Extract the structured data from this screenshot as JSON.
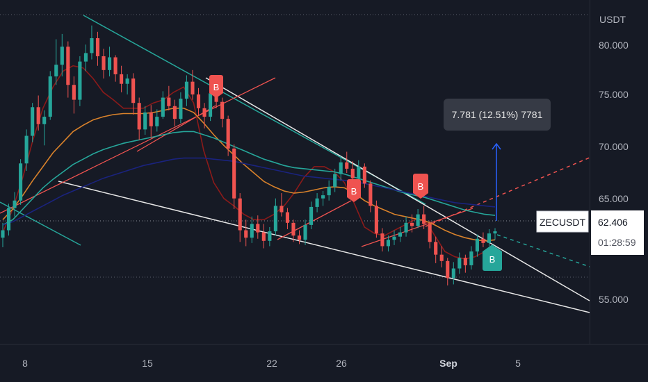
{
  "chart_data": {
    "type": "candlestick",
    "symbol": "ZECUSDT",
    "quote_currency": "USDT",
    "last_price": 62.406,
    "last_price_label": "62.406",
    "countdown": "01:28:59",
    "y_axis": {
      "ticks": [
        {
          "value": 80,
          "label": "80.000"
        },
        {
          "value": 75,
          "label": "75.000"
        },
        {
          "value": 70,
          "label": "70.000"
        },
        {
          "value": 65,
          "label": "65.000"
        },
        {
          "value": 55,
          "label": "55.000"
        }
      ],
      "range": [
        51.8,
        84.2
      ]
    },
    "x_axis": {
      "ticks": [
        "8",
        "15",
        "22",
        "26",
        "Sep",
        "5"
      ]
    },
    "measure_label": "7.781 (12.51%) 7781",
    "signals": [
      "B",
      "B",
      "B",
      "B"
    ],
    "moving_averages": [
      {
        "color": "#8b1a1a",
        "values": [
          62.3,
          64.5,
          67.5,
          71.0,
          74.0,
          76.0,
          77.5,
          78.0,
          77.8,
          76.8,
          75.5,
          74.8,
          74.0,
          74.0,
          74.0,
          74.5,
          74.8,
          75.5,
          76.0,
          74.5,
          70.0,
          67.0,
          65.5,
          64.8,
          64.0,
          63.5,
          63.5,
          64.0,
          64.8,
          66.0,
          67.5,
          68.5,
          68.5,
          68.0,
          67.0,
          65.0,
          62.8,
          62.2,
          62.0,
          62.5,
          63.0,
          63.5,
          63.5,
          62.0,
          60.5,
          60.0,
          59.8,
          60.0,
          60.5,
          61.0
        ]
      },
      {
        "color": "#d9822b",
        "values": [
          63.5,
          64.5,
          65.8,
          67.2,
          68.5,
          69.8,
          70.8,
          71.8,
          72.4,
          72.9,
          73.2,
          73.4,
          73.5,
          73.5,
          73.5,
          73.6,
          73.8,
          74.0,
          74.0,
          73.6,
          72.6,
          71.5,
          70.5,
          69.6,
          68.7,
          67.9,
          67.1,
          66.6,
          66.2,
          66.0,
          66.1,
          66.3,
          66.5,
          66.6,
          66.5,
          66.0,
          65.3,
          64.8,
          64.4,
          64.0,
          63.8,
          63.6,
          63.4,
          63.0,
          62.5,
          62.1,
          61.8,
          61.6,
          61.5,
          61.6
        ]
      },
      {
        "color": "#26a69a",
        "values": [
          63.0,
          63.5,
          64.5,
          65.5,
          66.5,
          67.3,
          68.0,
          68.7,
          69.2,
          69.7,
          70.1,
          70.4,
          70.7,
          70.9,
          71.1,
          71.3,
          71.5,
          71.7,
          71.8,
          71.8,
          71.5,
          71.2,
          70.8,
          70.4,
          70.0,
          69.6,
          69.2,
          68.9,
          68.6,
          68.4,
          68.3,
          68.2,
          68.1,
          68.0,
          67.8,
          67.5,
          67.2,
          66.9,
          66.6,
          66.3,
          66.0,
          65.8,
          65.6,
          65.3,
          65.0,
          64.7,
          64.4,
          64.2,
          64.0,
          63.9
        ]
      },
      {
        "color": "#1a237e",
        "values": [
          63.0,
          63.3,
          63.8,
          64.3,
          64.8,
          65.3,
          65.8,
          66.2,
          66.6,
          67.0,
          67.4,
          67.7,
          68.0,
          68.3,
          68.6,
          68.8,
          69.0,
          69.2,
          69.3,
          69.3,
          69.3,
          69.2,
          69.1,
          69.0,
          68.8,
          68.6,
          68.4,
          68.2,
          68.0,
          67.8,
          67.6,
          67.5,
          67.4,
          67.3,
          67.2,
          67.1,
          66.9,
          66.7,
          66.5,
          66.3,
          66.1,
          65.9,
          65.7,
          65.5,
          65.3,
          65.1,
          65.0,
          64.9,
          64.8,
          64.7
        ]
      }
    ],
    "candles": [
      {
        "o": 61.8,
        "h": 63.2,
        "l": 60.9,
        "c": 62.5
      },
      {
        "o": 62.5,
        "h": 65.0,
        "l": 62.0,
        "c": 64.6
      },
      {
        "o": 64.6,
        "h": 66.1,
        "l": 63.8,
        "c": 65.3
      },
      {
        "o": 65.3,
        "h": 69.2,
        "l": 64.9,
        "c": 68.8
      },
      {
        "o": 68.8,
        "h": 72.0,
        "l": 68.1,
        "c": 71.4
      },
      {
        "o": 71.4,
        "h": 74.5,
        "l": 70.8,
        "c": 74.1
      },
      {
        "o": 74.1,
        "h": 75.2,
        "l": 71.9,
        "c": 72.5
      },
      {
        "o": 72.5,
        "h": 73.8,
        "l": 70.5,
        "c": 73.2
      },
      {
        "o": 73.2,
        "h": 77.5,
        "l": 72.9,
        "c": 77.0
      },
      {
        "o": 77.0,
        "h": 80.5,
        "l": 76.2,
        "c": 78.1
      },
      {
        "o": 78.1,
        "h": 81.0,
        "l": 77.0,
        "c": 79.8
      },
      {
        "o": 79.8,
        "h": 80.3,
        "l": 75.0,
        "c": 76.2
      },
      {
        "o": 76.2,
        "h": 77.0,
        "l": 73.5,
        "c": 74.8
      },
      {
        "o": 74.8,
        "h": 78.9,
        "l": 74.2,
        "c": 78.4
      },
      {
        "o": 78.4,
        "h": 80.0,
        "l": 77.5,
        "c": 79.2
      },
      {
        "o": 79.2,
        "h": 81.8,
        "l": 78.6,
        "c": 80.6
      },
      {
        "o": 80.6,
        "h": 81.2,
        "l": 78.0,
        "c": 78.9
      },
      {
        "o": 78.9,
        "h": 79.6,
        "l": 76.8,
        "c": 77.6
      },
      {
        "o": 77.6,
        "h": 79.8,
        "l": 77.0,
        "c": 78.8
      },
      {
        "o": 78.8,
        "h": 79.0,
        "l": 76.5,
        "c": 77.2
      },
      {
        "o": 77.2,
        "h": 78.0,
        "l": 75.5,
        "c": 76.3
      },
      {
        "o": 76.3,
        "h": 77.2,
        "l": 75.3,
        "c": 76.8
      },
      {
        "o": 76.8,
        "h": 77.3,
        "l": 73.4,
        "c": 74.5
      },
      {
        "o": 74.5,
        "h": 75.0,
        "l": 71.0,
        "c": 72.0
      },
      {
        "o": 72.0,
        "h": 74.2,
        "l": 71.5,
        "c": 73.6
      },
      {
        "o": 73.6,
        "h": 74.3,
        "l": 71.2,
        "c": 72.3
      },
      {
        "o": 72.3,
        "h": 73.9,
        "l": 71.8,
        "c": 73.2
      },
      {
        "o": 73.2,
        "h": 75.6,
        "l": 73.0,
        "c": 75.0
      },
      {
        "o": 75.0,
        "h": 76.1,
        "l": 73.8,
        "c": 74.2
      },
      {
        "o": 74.2,
        "h": 74.8,
        "l": 72.3,
        "c": 73.0
      },
      {
        "o": 73.0,
        "h": 75.5,
        "l": 72.6,
        "c": 74.9
      },
      {
        "o": 74.9,
        "h": 77.1,
        "l": 74.2,
        "c": 76.5
      },
      {
        "o": 76.5,
        "h": 77.6,
        "l": 74.8,
        "c": 75.3
      },
      {
        "o": 75.3,
        "h": 75.9,
        "l": 73.3,
        "c": 74.0
      },
      {
        "o": 74.0,
        "h": 74.5,
        "l": 72.1,
        "c": 73.2
      },
      {
        "o": 73.2,
        "h": 76.0,
        "l": 72.8,
        "c": 75.4
      },
      {
        "o": 75.4,
        "h": 76.2,
        "l": 74.0,
        "c": 74.6
      },
      {
        "o": 74.6,
        "h": 75.0,
        "l": 72.2,
        "c": 73.0
      },
      {
        "o": 73.0,
        "h": 73.3,
        "l": 69.5,
        "c": 70.2
      },
      {
        "o": 70.2,
        "h": 70.6,
        "l": 64.5,
        "c": 65.5
      },
      {
        "o": 65.5,
        "h": 66.0,
        "l": 61.4,
        "c": 62.5
      },
      {
        "o": 62.5,
        "h": 63.5,
        "l": 61.0,
        "c": 61.8
      },
      {
        "o": 61.8,
        "h": 63.8,
        "l": 61.3,
        "c": 63.1
      },
      {
        "o": 63.1,
        "h": 63.9,
        "l": 61.7,
        "c": 62.3
      },
      {
        "o": 62.3,
        "h": 63.1,
        "l": 60.8,
        "c": 61.5
      },
      {
        "o": 61.5,
        "h": 62.8,
        "l": 61.0,
        "c": 62.4
      },
      {
        "o": 62.4,
        "h": 65.5,
        "l": 62.0,
        "c": 64.8
      },
      {
        "o": 64.8,
        "h": 66.0,
        "l": 63.8,
        "c": 64.2
      },
      {
        "o": 64.2,
        "h": 64.6,
        "l": 62.6,
        "c": 63.2
      },
      {
        "o": 63.2,
        "h": 63.5,
        "l": 61.4,
        "c": 62.0
      },
      {
        "o": 62.0,
        "h": 62.5,
        "l": 61.2,
        "c": 61.6
      },
      {
        "o": 61.6,
        "h": 63.5,
        "l": 61.1,
        "c": 63.0
      },
      {
        "o": 63.0,
        "h": 65.2,
        "l": 62.6,
        "c": 64.7
      },
      {
        "o": 64.7,
        "h": 66.0,
        "l": 64.2,
        "c": 65.5
      },
      {
        "o": 65.5,
        "h": 66.2,
        "l": 64.8,
        "c": 65.8
      },
      {
        "o": 65.8,
        "h": 67.2,
        "l": 65.3,
        "c": 66.6
      },
      {
        "o": 66.6,
        "h": 68.3,
        "l": 66.1,
        "c": 67.8
      },
      {
        "o": 67.8,
        "h": 69.5,
        "l": 67.2,
        "c": 68.9
      },
      {
        "o": 68.9,
        "h": 69.9,
        "l": 67.9,
        "c": 68.3
      },
      {
        "o": 68.3,
        "h": 69.0,
        "l": 67.0,
        "c": 67.4
      },
      {
        "o": 67.4,
        "h": 69.1,
        "l": 67.1,
        "c": 68.5
      },
      {
        "o": 68.5,
        "h": 68.8,
        "l": 66.5,
        "c": 66.9
      },
      {
        "o": 66.9,
        "h": 67.2,
        "l": 64.2,
        "c": 64.8
      },
      {
        "o": 64.8,
        "h": 65.3,
        "l": 61.8,
        "c": 62.2
      },
      {
        "o": 62.2,
        "h": 62.7,
        "l": 60.5,
        "c": 61.0
      },
      {
        "o": 61.0,
        "h": 62.0,
        "l": 60.5,
        "c": 61.6
      },
      {
        "o": 61.6,
        "h": 62.5,
        "l": 61.1,
        "c": 61.9
      },
      {
        "o": 61.9,
        "h": 62.8,
        "l": 61.4,
        "c": 62.3
      },
      {
        "o": 62.3,
        "h": 63.8,
        "l": 61.9,
        "c": 63.2
      },
      {
        "o": 63.2,
        "h": 64.0,
        "l": 62.3,
        "c": 62.9
      },
      {
        "o": 62.9,
        "h": 64.5,
        "l": 62.7,
        "c": 64.0
      },
      {
        "o": 64.0,
        "h": 64.8,
        "l": 62.6,
        "c": 63.1
      },
      {
        "o": 63.1,
        "h": 63.4,
        "l": 60.8,
        "c": 61.4
      },
      {
        "o": 61.4,
        "h": 61.9,
        "l": 59.4,
        "c": 60.2
      },
      {
        "o": 60.2,
        "h": 61.0,
        "l": 59.0,
        "c": 59.6
      },
      {
        "o": 59.6,
        "h": 59.9,
        "l": 57.3,
        "c": 58.0
      },
      {
        "o": 58.0,
        "h": 59.5,
        "l": 57.4,
        "c": 58.9
      },
      {
        "o": 58.9,
        "h": 60.4,
        "l": 58.4,
        "c": 59.9
      },
      {
        "o": 59.9,
        "h": 60.2,
        "l": 58.5,
        "c": 59.2
      },
      {
        "o": 59.2,
        "h": 61.0,
        "l": 58.8,
        "c": 60.5
      },
      {
        "o": 60.5,
        "h": 62.1,
        "l": 60.0,
        "c": 61.7
      },
      {
        "o": 61.7,
        "h": 62.3,
        "l": 60.9,
        "c": 61.3
      },
      {
        "o": 61.3,
        "h": 62.6,
        "l": 61.0,
        "c": 62.2
      },
      {
        "o": 62.2,
        "h": 62.7,
        "l": 61.6,
        "c": 62.4
      }
    ]
  }
}
